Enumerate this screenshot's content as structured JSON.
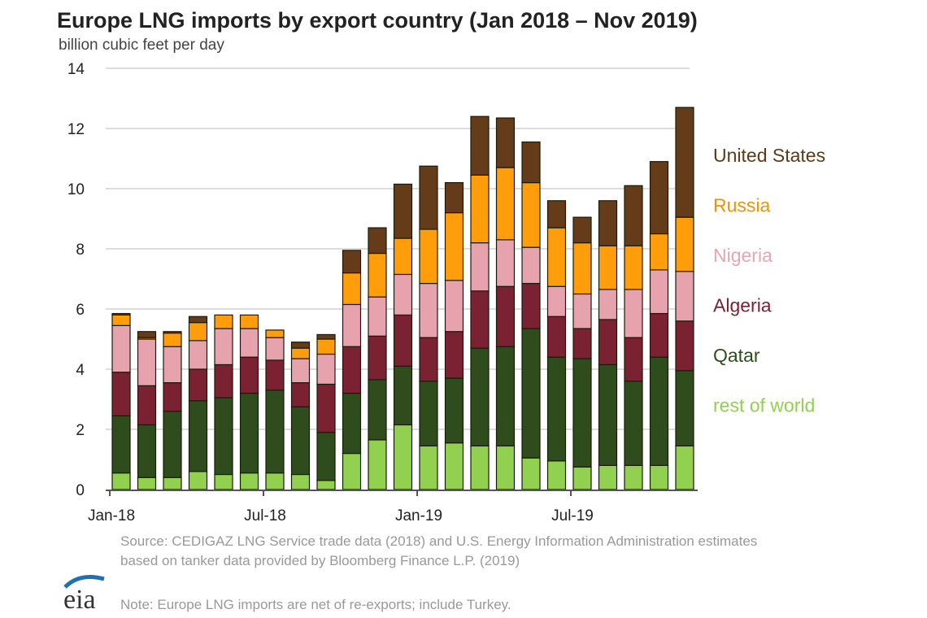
{
  "chart_data": {
    "type": "bar",
    "stacked": true,
    "title": "Europe LNG imports by export country (Jan 2018 – Nov 2019)",
    "ylabel": "billion cubic feet per day",
    "ylim": [
      0,
      14
    ],
    "yticks": [
      0,
      2,
      4,
      6,
      8,
      10,
      12,
      14
    ],
    "grid": true,
    "legend": "right",
    "categories": [
      "Jan-18",
      "Feb-18",
      "Mar-18",
      "Apr-18",
      "May-18",
      "Jun-18",
      "Jul-18",
      "Aug-18",
      "Sep-18",
      "Oct-18",
      "Nov-18",
      "Dec-18",
      "Jan-19",
      "Feb-19",
      "Mar-19",
      "Apr-19",
      "May-19",
      "Jun-19",
      "Jul-19",
      "Aug-19",
      "Sep-19",
      "Oct-19",
      "Nov-19"
    ],
    "xtick_labels": [
      {
        "index": 0,
        "label": "Jan-18"
      },
      {
        "index": 6,
        "label": "Jul-18"
      },
      {
        "index": 12,
        "label": "Jan-19"
      },
      {
        "index": 18,
        "label": "Jul-19"
      }
    ],
    "series": [
      {
        "name": "rest of world",
        "color": "#92d050",
        "values": [
          0.55,
          0.4,
          0.4,
          0.6,
          0.5,
          0.55,
          0.55,
          0.5,
          0.3,
          1.2,
          1.65,
          2.15,
          1.45,
          1.55,
          1.45,
          1.45,
          1.05,
          0.95,
          0.75,
          0.8,
          0.8,
          0.8,
          1.45
        ]
      },
      {
        "name": "Qatar",
        "color": "#2f4d1c",
        "values": [
          1.9,
          1.75,
          2.2,
          2.35,
          2.55,
          2.65,
          2.75,
          2.25,
          1.6,
          2.0,
          2.0,
          1.95,
          2.15,
          2.15,
          3.25,
          3.3,
          4.3,
          3.45,
          3.6,
          3.35,
          2.8,
          3.6,
          2.5
        ]
      },
      {
        "name": "Algeria",
        "color": "#7b2232",
        "values": [
          1.45,
          1.3,
          0.95,
          1.05,
          1.1,
          1.2,
          1.0,
          0.8,
          1.6,
          1.55,
          1.45,
          1.7,
          1.45,
          1.55,
          1.9,
          2.0,
          1.5,
          1.35,
          1.0,
          1.5,
          1.45,
          1.45,
          1.65
        ]
      },
      {
        "name": "Nigeria",
        "color": "#e6a3ad",
        "values": [
          1.55,
          1.55,
          1.2,
          0.95,
          1.2,
          0.95,
          0.75,
          0.8,
          1.0,
          1.4,
          1.3,
          1.35,
          1.8,
          1.7,
          1.6,
          1.55,
          1.2,
          1.0,
          1.15,
          1.0,
          1.6,
          1.45,
          1.65
        ]
      },
      {
        "name": "Russia",
        "color": "#ff9e0a",
        "values": [
          0.35,
          0.05,
          0.45,
          0.6,
          0.45,
          0.45,
          0.25,
          0.35,
          0.5,
          1.05,
          1.45,
          1.2,
          1.8,
          2.25,
          2.25,
          2.4,
          2.15,
          1.95,
          1.7,
          1.45,
          1.45,
          1.2,
          1.8
        ]
      },
      {
        "name": "United States",
        "color": "#643c19",
        "values": [
          0.05,
          0.2,
          0.05,
          0.2,
          0,
          0,
          0,
          0.2,
          0.15,
          0.75,
          0.85,
          1.8,
          2.1,
          1.0,
          1.95,
          1.65,
          1.35,
          0.9,
          0.85,
          1.5,
          2.0,
          2.4,
          3.65
        ]
      }
    ],
    "legend_text_colors": {
      "United States": "#5e3a17",
      "Russia": "#f39200",
      "Nigeria": "#e8a5b0",
      "Algeria": "#7b2232",
      "Qatar": "#2f4d1c",
      "rest of world": "#92d050"
    }
  },
  "source": "Source: CEDIGAZ LNG Service trade data (2018) and U.S. Energy Information Administration estimates based on tanker data provided by Bloomberg Finance L.P. (2019)",
  "note": "Note: Europe LNG imports are net of re-exports; include Turkey.",
  "logo": "eia"
}
